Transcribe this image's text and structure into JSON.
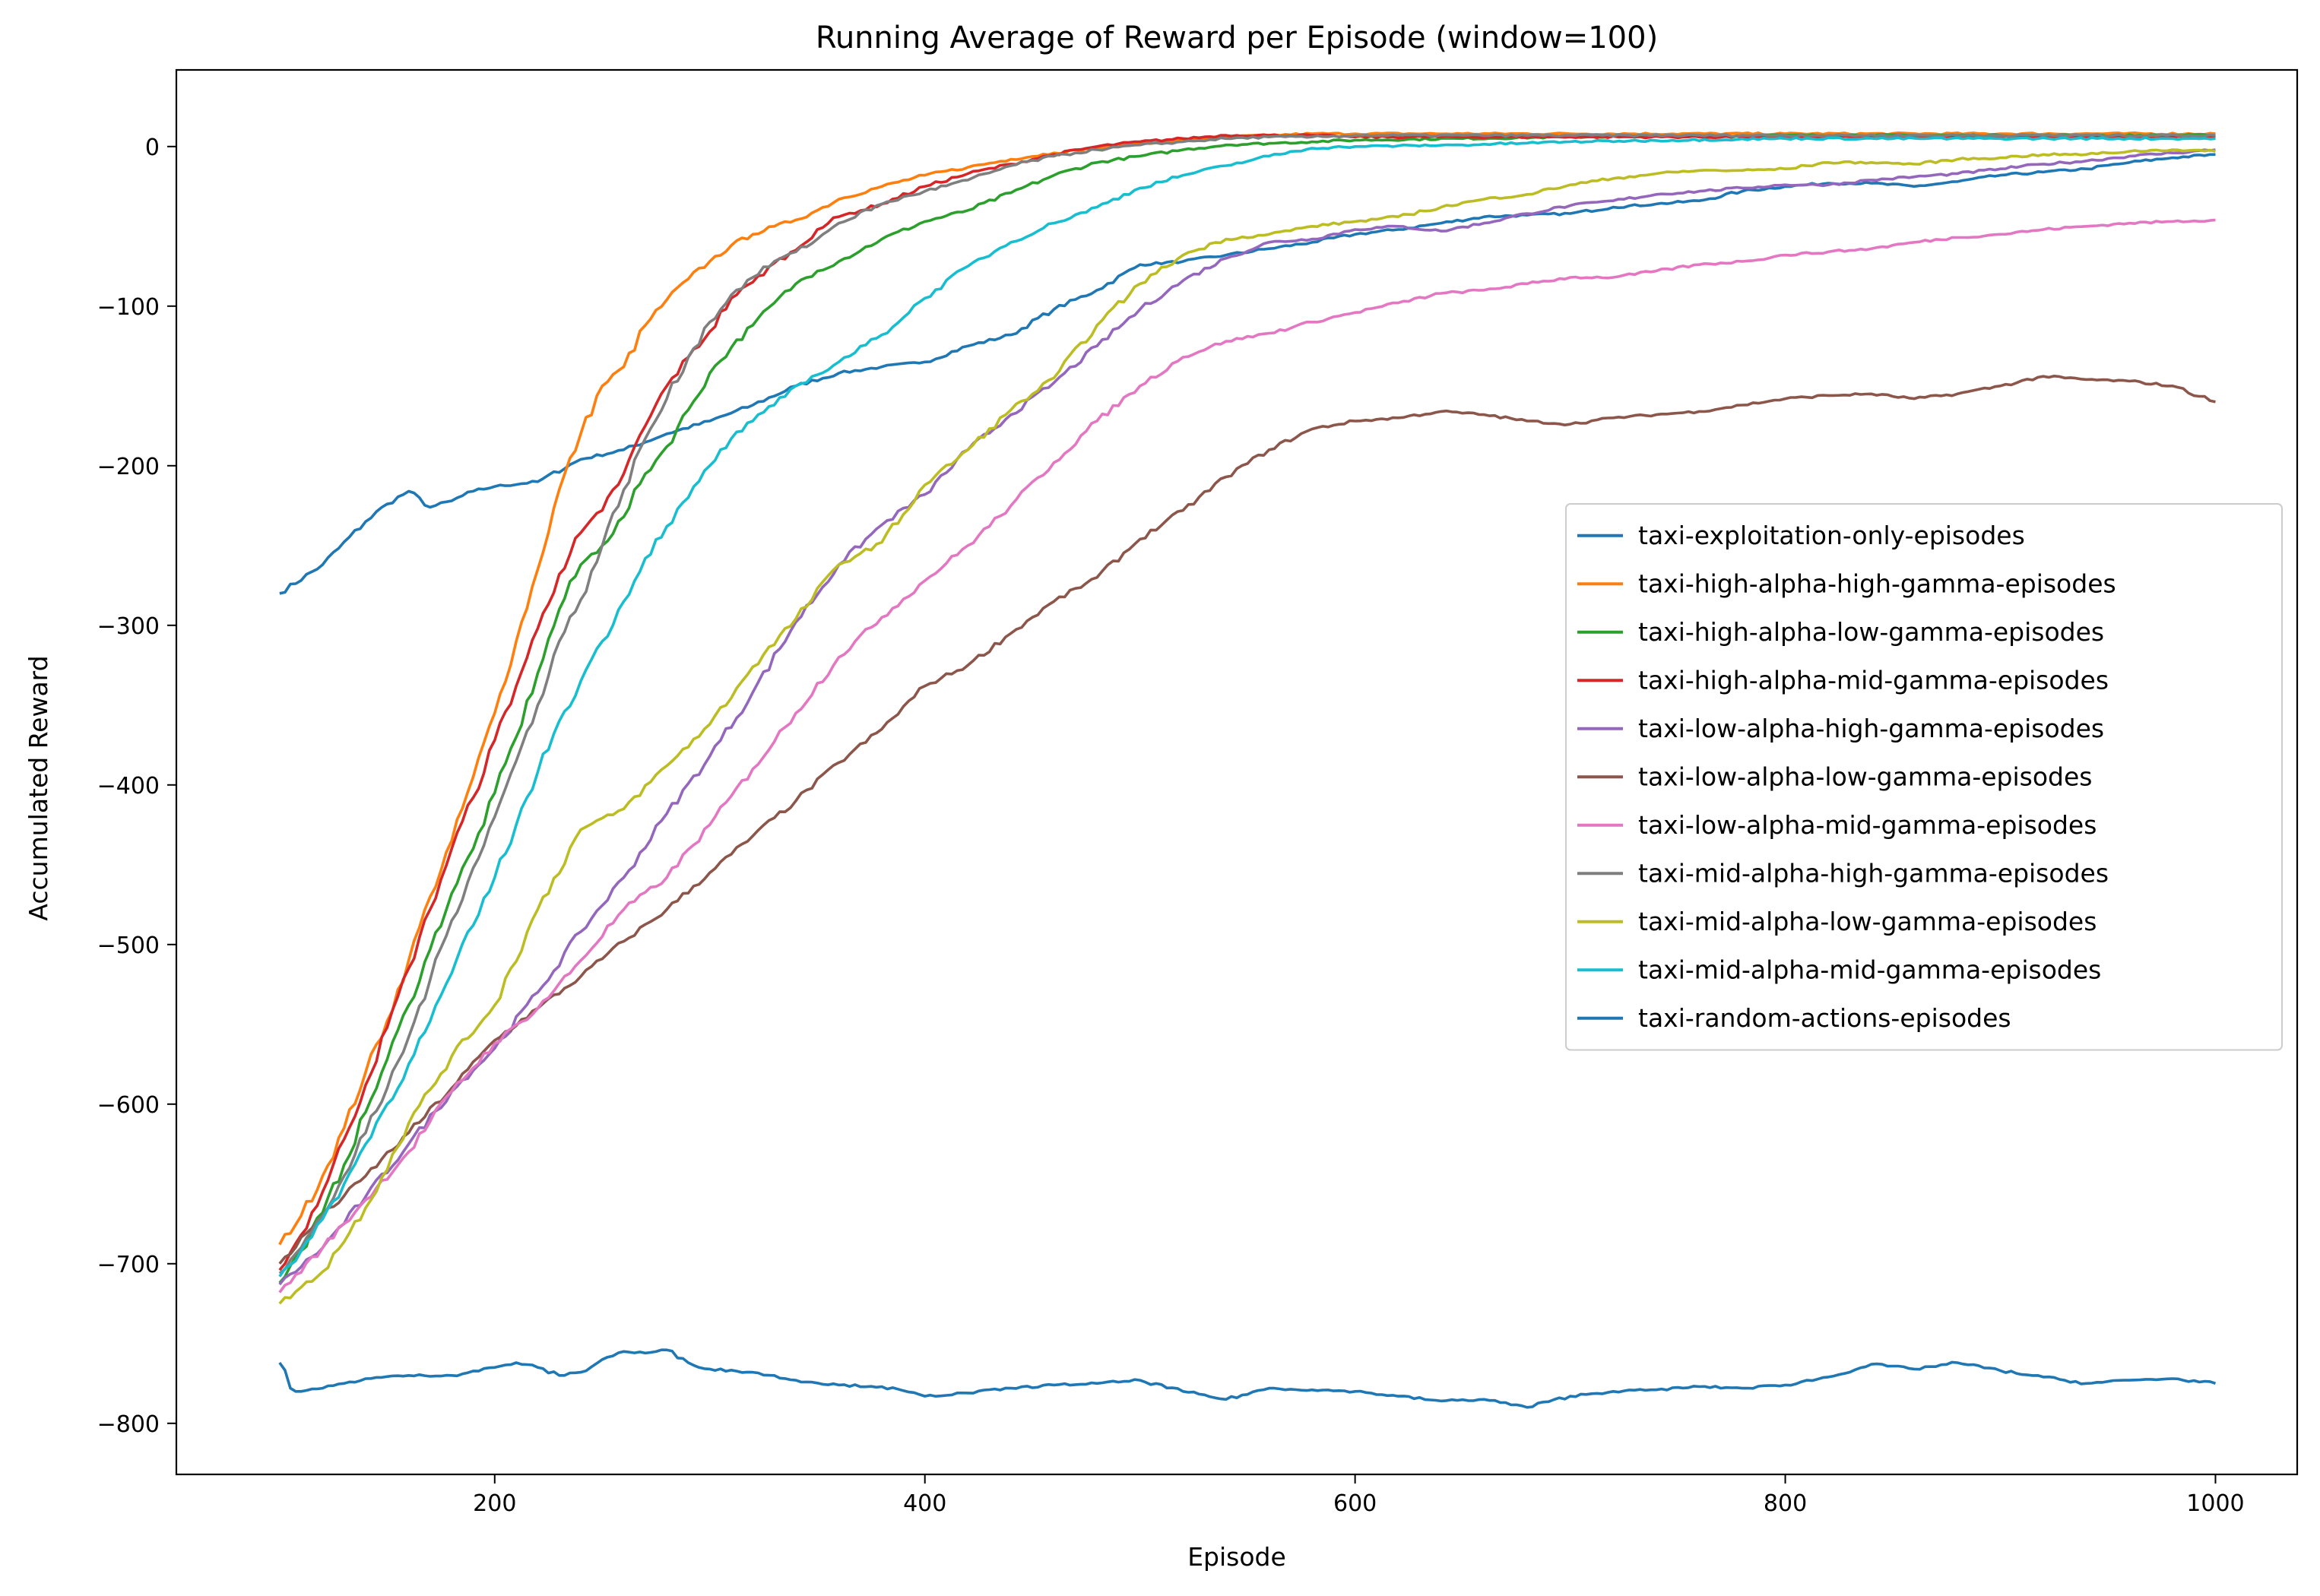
{
  "chart_data": {
    "type": "line",
    "title": "Running Average of Reward per Episode (window=100)",
    "xlabel": "Episode",
    "ylabel": "Accumulated Reward",
    "xlim": [
      52,
      1038
    ],
    "ylim": [
      -832,
      48
    ],
    "xticks": [
      200,
      400,
      600,
      800,
      1000
    ],
    "yticks": [
      0,
      -100,
      -200,
      -300,
      -400,
      -500,
      -600,
      -700,
      -800
    ],
    "xtick_labels": [
      "200",
      "400",
      "600",
      "800",
      "1000"
    ],
    "ytick_labels": [
      "0",
      "−100",
      "−200",
      "−300",
      "−400",
      "−500",
      "−600",
      "−700",
      "−800"
    ],
    "grid": false,
    "legend_position": "center-right",
    "series": [
      {
        "name": "taxi-exploitation-only-episodes",
        "color": "#1f77b4",
        "x": [
          100,
          120,
          140,
          150,
          160,
          170,
          180,
          190,
          200,
          220,
          240,
          260,
          280,
          300,
          320,
          340,
          360,
          380,
          400,
          420,
          440,
          460,
          480,
          500,
          520,
          540,
          560,
          580,
          600,
          620,
          640,
          660,
          680,
          700,
          720,
          740,
          760,
          780,
          800,
          820,
          840,
          860,
          880,
          900,
          920,
          940,
          960,
          980,
          1000
        ],
        "y": [
          -280,
          -262,
          -235,
          -224,
          -216,
          -226,
          -222,
          -216,
          -213,
          -210,
          -196,
          -190,
          -180,
          -172,
          -162,
          -150,
          -142,
          -138,
          -135,
          -125,
          -118,
          -102,
          -90,
          -74,
          -72,
          -68,
          -64,
          -60,
          -55,
          -52,
          -48,
          -44,
          -43,
          -42,
          -38,
          -36,
          -34,
          -28,
          -25,
          -23,
          -23,
          -25,
          -22,
          -18,
          -16,
          -14,
          -10,
          -7,
          -5
        ]
      },
      {
        "name": "taxi-high-alpha-high-gamma-episodes",
        "color": "#ff7f0e",
        "x": [
          100,
          110,
          120,
          130,
          140,
          150,
          160,
          170,
          180,
          190,
          200,
          210,
          220,
          230,
          240,
          250,
          260,
          270,
          280,
          290,
          300,
          310,
          320,
          330,
          340,
          350,
          360,
          380,
          400,
          420,
          440,
          460,
          480,
          500,
          520,
          540,
          560,
          580,
          600,
          650,
          700,
          800,
          900,
          1000
        ],
        "y": [
          -688,
          -670,
          -645,
          -615,
          -580,
          -548,
          -510,
          -470,
          -435,
          -395,
          -355,
          -310,
          -265,
          -215,
          -180,
          -150,
          -138,
          -112,
          -96,
          -83,
          -72,
          -62,
          -55,
          -50,
          -46,
          -40,
          -33,
          -25,
          -18,
          -13,
          -8,
          -4,
          -1,
          2,
          4,
          6,
          7,
          8,
          8,
          8,
          8,
          8,
          8,
          8
        ]
      },
      {
        "name": "taxi-high-alpha-low-gamma-episodes",
        "color": "#2ca02c",
        "x": [
          100,
          110,
          120,
          130,
          140,
          150,
          160,
          170,
          180,
          190,
          200,
          210,
          220,
          230,
          240,
          250,
          260,
          270,
          280,
          290,
          300,
          310,
          320,
          330,
          340,
          350,
          360,
          380,
          400,
          420,
          440,
          460,
          480,
          500,
          520,
          540,
          560,
          580,
          600,
          650,
          700,
          800,
          900,
          1000
        ],
        "y": [
          -712,
          -692,
          -668,
          -638,
          -605,
          -572,
          -538,
          -503,
          -468,
          -440,
          -405,
          -370,
          -330,
          -290,
          -262,
          -250,
          -232,
          -205,
          -188,
          -165,
          -142,
          -126,
          -112,
          -98,
          -86,
          -78,
          -72,
          -58,
          -47,
          -40,
          -29,
          -18,
          -10,
          -6,
          -2,
          1,
          2,
          3,
          4,
          5,
          6,
          7,
          7,
          7
        ]
      },
      {
        "name": "taxi-high-alpha-mid-gamma-episodes",
        "color": "#d62728",
        "x": [
          100,
          110,
          120,
          130,
          140,
          150,
          160,
          170,
          180,
          190,
          200,
          210,
          220,
          230,
          240,
          250,
          260,
          270,
          280,
          290,
          300,
          310,
          320,
          330,
          340,
          350,
          360,
          380,
          400,
          420,
          440,
          460,
          480,
          500,
          520,
          540,
          560,
          580,
          600,
          650,
          700,
          800,
          900,
          1000
        ],
        "y": [
          -704,
          -682,
          -655,
          -622,
          -588,
          -552,
          -515,
          -478,
          -440,
          -408,
          -372,
          -338,
          -302,
          -268,
          -242,
          -228,
          -205,
          -175,
          -150,
          -132,
          -116,
          -95,
          -85,
          -73,
          -65,
          -52,
          -44,
          -36,
          -25,
          -17,
          -11,
          -5,
          0,
          3,
          5,
          7,
          7,
          7,
          6,
          6,
          6,
          6,
          6,
          6
        ]
      },
      {
        "name": "taxi-low-alpha-high-gamma-episodes",
        "color": "#9467bd",
        "x": [
          100,
          120,
          140,
          160,
          180,
          200,
          220,
          240,
          260,
          280,
          300,
          320,
          340,
          360,
          380,
          400,
          420,
          440,
          460,
          480,
          500,
          520,
          540,
          560,
          580,
          600,
          620,
          640,
          660,
          680,
          700,
          720,
          740,
          760,
          780,
          800,
          820,
          840,
          860,
          880,
          900,
          920,
          940,
          960,
          980,
          1000
        ],
        "y": [
          -713,
          -690,
          -658,
          -625,
          -592,
          -565,
          -530,
          -492,
          -458,
          -418,
          -382,
          -342,
          -298,
          -262,
          -237,
          -218,
          -190,
          -168,
          -148,
          -125,
          -102,
          -84,
          -70,
          -60,
          -58,
          -52,
          -50,
          -53,
          -48,
          -42,
          -37,
          -34,
          -30,
          -28,
          -26,
          -24,
          -24,
          -21,
          -19,
          -17,
          -14,
          -11,
          -9,
          -6,
          -4,
          -2
        ]
      },
      {
        "name": "taxi-low-alpha-low-gamma-episodes",
        "color": "#8c564b",
        "x": [
          100,
          120,
          140,
          160,
          180,
          200,
          220,
          240,
          260,
          280,
          300,
          320,
          340,
          360,
          380,
          400,
          420,
          440,
          460,
          480,
          500,
          520,
          540,
          560,
          580,
          600,
          620,
          640,
          660,
          680,
          700,
          720,
          740,
          760,
          780,
          800,
          820,
          840,
          860,
          880,
          900,
          920,
          940,
          960,
          980,
          1000
        ],
        "y": [
          -700,
          -670,
          -645,
          -618,
          -590,
          -560,
          -540,
          -520,
          -498,
          -478,
          -455,
          -432,
          -410,
          -386,
          -365,
          -338,
          -325,
          -305,
          -285,
          -270,
          -246,
          -228,
          -207,
          -190,
          -177,
          -172,
          -170,
          -166,
          -168,
          -172,
          -174,
          -170,
          -168,
          -166,
          -162,
          -158,
          -156,
          -155,
          -158,
          -155,
          -150,
          -144,
          -146,
          -147,
          -150,
          -160
        ]
      },
      {
        "name": "taxi-low-alpha-mid-gamma-episodes",
        "color": "#e377c2",
        "x": [
          100,
          120,
          140,
          160,
          180,
          200,
          220,
          240,
          260,
          280,
          300,
          320,
          340,
          360,
          380,
          400,
          420,
          440,
          460,
          480,
          500,
          520,
          540,
          560,
          580,
          600,
          620,
          640,
          660,
          680,
          700,
          720,
          740,
          760,
          780,
          800,
          820,
          840,
          860,
          880,
          900,
          920,
          940,
          960,
          980,
          1000
        ],
        "y": [
          -718,
          -690,
          -660,
          -630,
          -592,
          -562,
          -540,
          -510,
          -478,
          -458,
          -425,
          -390,
          -355,
          -320,
          -295,
          -272,
          -250,
          -225,
          -198,
          -172,
          -150,
          -132,
          -122,
          -117,
          -110,
          -104,
          -98,
          -92,
          -90,
          -86,
          -82,
          -82,
          -78,
          -74,
          -72,
          -68,
          -66,
          -64,
          -60,
          -57,
          -55,
          -52,
          -50,
          -48,
          -47,
          -46
        ]
      },
      {
        "name": "taxi-mid-alpha-high-gamma-episodes",
        "color": "#7f7f7f",
        "x": [
          100,
          110,
          120,
          130,
          140,
          150,
          160,
          170,
          180,
          190,
          200,
          210,
          220,
          230,
          240,
          250,
          260,
          270,
          280,
          290,
          300,
          310,
          320,
          330,
          340,
          350,
          360,
          380,
          400,
          420,
          440,
          460,
          480,
          500,
          520,
          540,
          560,
          580,
          600,
          650,
          700,
          800,
          900,
          1000
        ],
        "y": [
          -706,
          -690,
          -670,
          -645,
          -618,
          -590,
          -558,
          -522,
          -485,
          -452,
          -420,
          -385,
          -350,
          -310,
          -284,
          -250,
          -215,
          -183,
          -158,
          -132,
          -110,
          -93,
          -82,
          -72,
          -66,
          -58,
          -48,
          -36,
          -28,
          -21,
          -12,
          -6,
          -2,
          1,
          3,
          5,
          6,
          6,
          7,
          7,
          7,
          7,
          7,
          7
        ]
      },
      {
        "name": "taxi-mid-alpha-low-gamma-episodes",
        "color": "#bcbd22",
        "x": [
          100,
          120,
          140,
          160,
          180,
          200,
          220,
          240,
          260,
          280,
          300,
          320,
          340,
          360,
          380,
          400,
          420,
          440,
          460,
          480,
          500,
          520,
          540,
          560,
          580,
          600,
          620,
          640,
          660,
          680,
          700,
          720,
          740,
          760,
          780,
          800,
          820,
          840,
          860,
          880,
          900,
          920,
          940,
          960,
          980,
          1000
        ],
        "y": [
          -725,
          -705,
          -665,
          -612,
          -570,
          -538,
          -478,
          -428,
          -415,
          -388,
          -362,
          -326,
          -296,
          -262,
          -248,
          -212,
          -190,
          -165,
          -145,
          -112,
          -86,
          -68,
          -58,
          -55,
          -50,
          -47,
          -44,
          -38,
          -33,
          -30,
          -24,
          -20,
          -17,
          -15,
          -15,
          -14,
          -10,
          -10,
          -11,
          -8,
          -7,
          -5,
          -5,
          -3,
          -2,
          -3
        ]
      },
      {
        "name": "taxi-mid-alpha-mid-gamma-episodes",
        "color": "#17becf",
        "x": [
          100,
          110,
          120,
          130,
          140,
          150,
          160,
          170,
          180,
          190,
          200,
          210,
          220,
          230,
          240,
          250,
          260,
          270,
          280,
          290,
          300,
          310,
          320,
          330,
          340,
          350,
          360,
          380,
          400,
          420,
          440,
          460,
          480,
          500,
          520,
          540,
          560,
          580,
          600,
          650,
          700,
          800,
          900,
          1000
        ],
        "y": [
          -708,
          -692,
          -672,
          -650,
          -625,
          -600,
          -575,
          -548,
          -518,
          -488,
          -458,
          -425,
          -392,
          -360,
          -335,
          -310,
          -285,
          -258,
          -238,
          -220,
          -200,
          -183,
          -172,
          -162,
          -150,
          -143,
          -135,
          -118,
          -95,
          -75,
          -60,
          -48,
          -38,
          -26,
          -18,
          -12,
          -6,
          -1,
          0,
          1,
          3,
          5,
          5,
          5
        ]
      },
      {
        "name": "taxi-random-actions-episodes",
        "color": "#1f77b4",
        "x": [
          100,
          105,
          110,
          120,
          130,
          140,
          160,
          180,
          200,
          210,
          220,
          230,
          240,
          250,
          260,
          270,
          280,
          290,
          300,
          320,
          340,
          360,
          380,
          400,
          420,
          440,
          460,
          480,
          500,
          520,
          540,
          560,
          580,
          600,
          620,
          640,
          660,
          680,
          700,
          720,
          740,
          760,
          780,
          800,
          820,
          840,
          860,
          880,
          900,
          920,
          940,
          960,
          980,
          1000
        ],
        "y": [
          -762,
          -778,
          -780,
          -778,
          -775,
          -772,
          -770,
          -770,
          -765,
          -762,
          -765,
          -770,
          -768,
          -760,
          -755,
          -756,
          -754,
          -762,
          -766,
          -768,
          -773,
          -776,
          -777,
          -783,
          -781,
          -778,
          -776,
          -775,
          -773,
          -780,
          -785,
          -778,
          -779,
          -780,
          -783,
          -786,
          -785,
          -790,
          -783,
          -780,
          -779,
          -777,
          -778,
          -776,
          -771,
          -763,
          -766,
          -762,
          -767,
          -771,
          -775,
          -773,
          -772,
          -775
        ]
      }
    ]
  }
}
